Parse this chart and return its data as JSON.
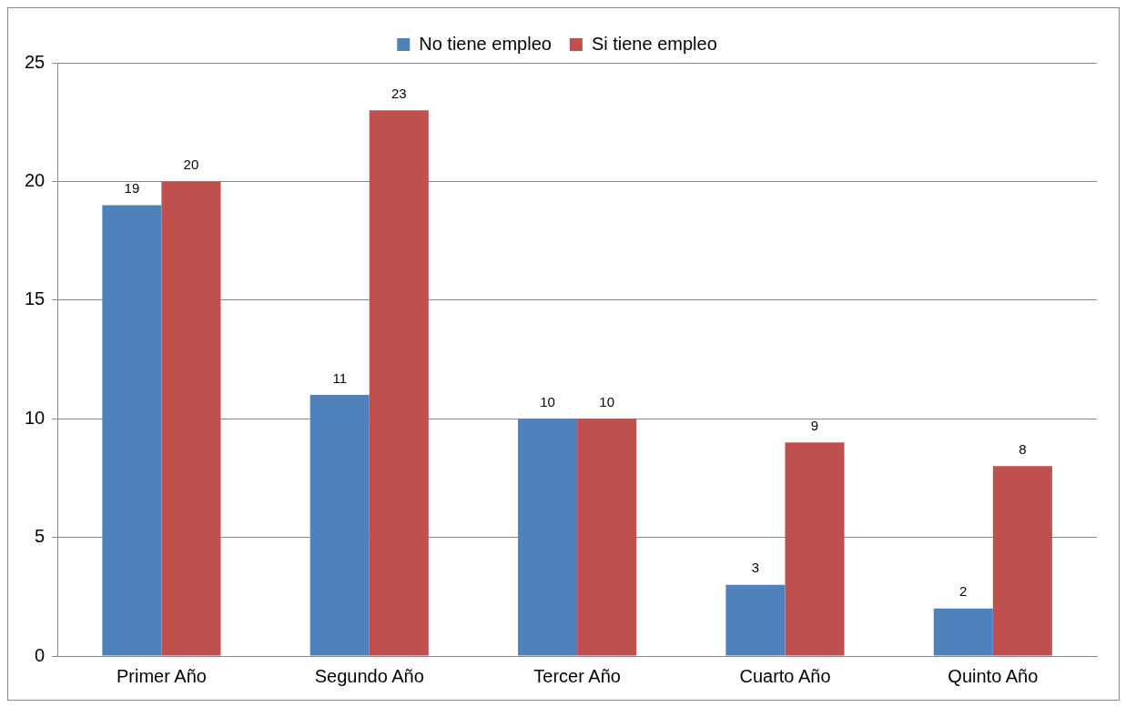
{
  "chart_data": {
    "type": "bar",
    "categories": [
      "Primer Año",
      "Segundo Año",
      "Tercer Año",
      "Cuarto Año",
      "Quinto Año"
    ],
    "series": [
      {
        "name": "No tiene empleo",
        "color": "#4f81bd",
        "values": [
          19,
          11,
          10,
          3,
          2
        ]
      },
      {
        "name": "Si tiene empleo",
        "color": "#c0504d",
        "values": [
          20,
          23,
          10,
          9,
          8
        ]
      }
    ],
    "ylim": [
      0,
      25
    ],
    "yticks": [
      0,
      5,
      10,
      15,
      20,
      25
    ],
    "grid": "y",
    "legend": "top",
    "data_labels": true
  }
}
